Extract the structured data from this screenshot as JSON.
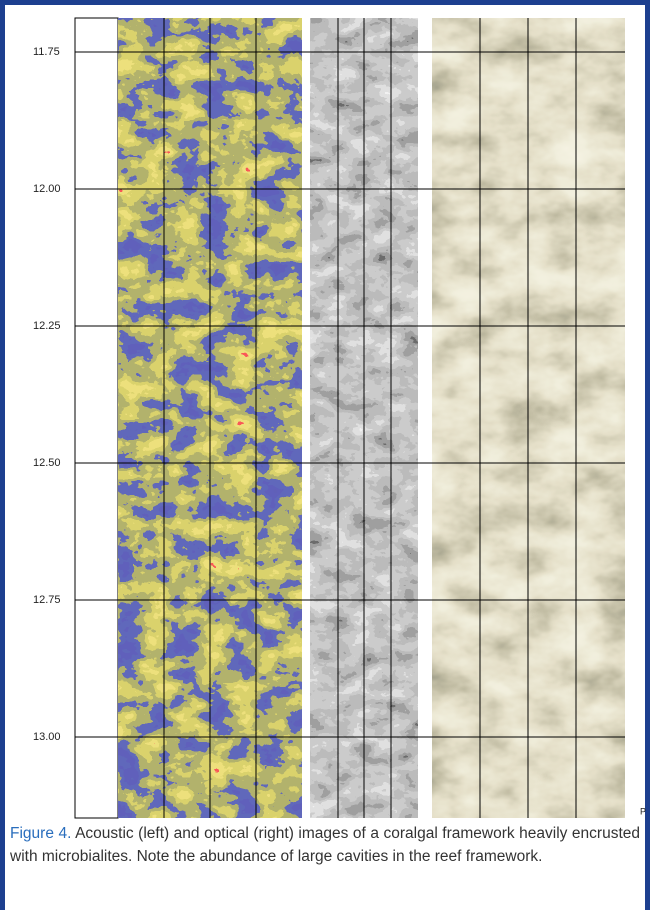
{
  "figure": {
    "depth_labels": [
      "11.75",
      "12.00",
      "12.25",
      "12.50",
      "12.75",
      "13.00"
    ],
    "corner_mark": "P"
  },
  "caption": {
    "label": "Figure 4.",
    "text": "Acoustic (left) and optical (right) images of a coralgal framework heavily encrusted with microbialites. Note the abundance of large cavities in the reef framework."
  }
}
